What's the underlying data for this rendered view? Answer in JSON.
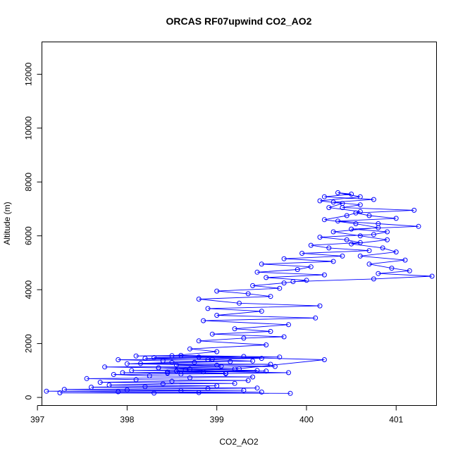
{
  "chart_data": {
    "type": "line",
    "title": "ORCAS RF07upwind CO2_AO2",
    "xlabel": "CO2_AO2",
    "ylabel": "Altitude (m)",
    "xlim": [
      397.05,
      401.45
    ],
    "ylim": [
      -300,
      13200
    ],
    "xticks": [
      "397",
      "398",
      "399",
      "400",
      "401"
    ],
    "yticks": [
      "0",
      "2000",
      "4000",
      "6000",
      "8000",
      "10000",
      "12000"
    ],
    "grid": false,
    "marker": "open-circle",
    "color": "#0000ff",
    "series": [
      {
        "x": [
          399.82,
          398.3,
          397.25,
          398.8,
          399.5,
          397.9,
          397.1,
          398.6,
          399.3,
          398.0,
          397.3,
          398.9,
          399.45,
          397.6,
          398.2,
          399.0,
          397.8,
          398.4,
          399.2,
          397.7,
          398.5,
          399.35,
          398.1,
          397.55,
          398.7,
          399.4,
          398.25,
          397.85,
          399.1,
          398.45,
          397.95,
          398.85,
          399.55,
          398.05,
          398.65,
          399.25,
          398.35,
          397.75,
          399.05,
          398.55,
          399.6,
          398.15,
          398.75,
          399.15,
          398.4,
          397.9,
          398.95,
          399.5,
          398.3,
          398.8,
          399.3,
          398.1,
          398.6,
          399.7,
          398.2,
          398.9,
          399.4,
          398.5,
          398.0,
          399.0,
          399.65,
          398.35,
          398.7,
          399.45,
          398.45,
          399.1,
          398.6,
          399.8,
          398.55,
          399.2,
          400.2,
          398.5,
          399.0,
          398.7,
          399.55,
          398.8,
          399.3,
          399.75,
          398.95,
          399.6,
          399.2,
          399.8,
          398.85,
          400.1,
          399.0,
          399.5,
          398.9,
          400.15,
          399.25,
          398.8,
          399.6,
          399.35,
          399.0,
          399.7,
          399.4,
          399.75,
          400.0,
          399.55,
          400.2,
          399.45,
          399.9,
          400.05,
          399.5,
          400.3,
          399.75,
          400.4,
          399.95,
          400.7,
          400.25,
          400.05,
          400.6,
          400.45,
          400.15,
          400.75,
          400.9,
          400.5,
          401.25,
          400.8,
          400.35,
          401.0,
          400.7,
          400.55,
          401.2,
          400.4,
          400.6,
          400.3,
          400.75,
          400.2,
          400.5,
          400.35,
          400.6,
          400.15,
          400.4,
          400.25,
          400.6,
          400.45,
          400.2,
          400.55,
          400.8,
          400.3,
          400.6,
          400.9,
          400.5,
          400.85,
          401.0,
          400.6,
          401.1,
          400.7,
          400.95,
          401.15,
          400.8,
          401.4,
          400.75,
          399.85
        ],
        "y": [
          150,
          160,
          170,
          180,
          200,
          210,
          230,
          250,
          260,
          280,
          300,
          330,
          350,
          380,
          400,
          430,
          460,
          500,
          520,
          560,
          600,
          630,
          660,
          700,
          730,
          760,
          800,
          850,
          880,
          900,
          920,
          950,
          980,
          1000,
          1030,
          1060,
          1100,
          1130,
          1160,
          1200,
          1230,
          1260,
          1300,
          1330,
          1360,
          1400,
          1420,
          1450,
          1480,
          1500,
          1520,
          1540,
          1560,
          1500,
          1450,
          1400,
          1350,
          1300,
          1250,
          1200,
          1150,
          1100,
          1050,
          1000,
          950,
          900,
          870,
          920,
          980,
          1050,
          1400,
          1550,
          1700,
          1800,
          1950,
          2100,
          2200,
          2250,
          2350,
          2450,
          2550,
          2700,
          2850,
          2950,
          3050,
          3200,
          3300,
          3400,
          3500,
          3650,
          3750,
          3850,
          3950,
          4050,
          4150,
          4250,
          4350,
          4450,
          4550,
          4650,
          4750,
          4850,
          4950,
          5050,
          5150,
          5250,
          5350,
          5450,
          5550,
          5650,
          5750,
          5850,
          5950,
          6050,
          6150,
          6250,
          6350,
          6450,
          6550,
          6650,
          6750,
          6850,
          6950,
          7050,
          7150,
          7250,
          7350,
          7450,
          7550,
          7600,
          7450,
          7300,
          7200,
          7050,
          6900,
          6750,
          6600,
          6450,
          6300,
          6150,
          6000,
          5850,
          5700,
          5550,
          5400,
          5250,
          5100,
          4950,
          4800,
          4700,
          4600,
          4500,
          4400,
          4300
        ]
      }
    ]
  }
}
